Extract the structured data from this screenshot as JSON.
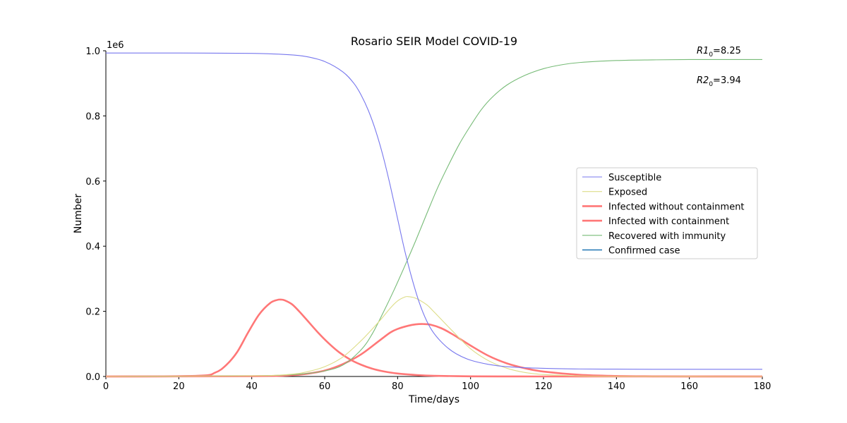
{
  "chart_data": {
    "type": "line",
    "title": "Rosario SEIR Model COVID-19",
    "xlabel": "Time/days",
    "ylabel": "Number",
    "xlim": [
      0,
      180
    ],
    "ylim": [
      0,
      1000000
    ],
    "x_ticks": [
      0,
      20,
      40,
      60,
      80,
      100,
      120,
      140,
      160,
      180
    ],
    "y_ticks": [
      0.0,
      0.2,
      0.4,
      0.6,
      0.8,
      1.0
    ],
    "y_tick_labels": [
      "0.0",
      "0.2",
      "0.4",
      "0.6",
      "0.8",
      "1.0"
    ],
    "y_offset_label": "1e6",
    "grid": false,
    "legend_position": "center-right",
    "annotations": [
      {
        "base": "R1",
        "sub": "0",
        "value": "=8.25"
      },
      {
        "base": "R2",
        "sub": "0",
        "value": "=3.94"
      }
    ],
    "series": [
      {
        "name": "Susceptible",
        "color": "#7777ee",
        "linewidth": "thin",
        "x": [
          0,
          20,
          40,
          50,
          55,
          60,
          65,
          68,
          70,
          72,
          74,
          76,
          78,
          80,
          82,
          84,
          86,
          88,
          90,
          93,
          96,
          100,
          105,
          110,
          120,
          130,
          140,
          150,
          160,
          170,
          180
        ],
        "y": [
          993000,
          993000,
          992000,
          988000,
          982000,
          967000,
          935000,
          900000,
          864000,
          816000,
          754000,
          677000,
          585000,
          484000,
          384000,
          298000,
          225000,
          170000,
          132000,
          95000,
          70000,
          50000,
          37000,
          30000,
          25000,
          23000,
          22500,
          22000,
          22000,
          22000,
          22000
        ]
      },
      {
        "name": "Exposed",
        "color": "#dddd88",
        "linewidth": "thin",
        "x": [
          0,
          40,
          50,
          55,
          60,
          65,
          70,
          75,
          78,
          80,
          82,
          83,
          85,
          88,
          90,
          95,
          100,
          105,
          110,
          115,
          120,
          130,
          140,
          160,
          180
        ],
        "y": [
          0,
          2000,
          6000,
          14000,
          30000,
          60000,
          110000,
          170000,
          210000,
          232000,
          244000,
          245000,
          240000,
          220000,
          198000,
          140000,
          85000,
          48000,
          25000,
          12000,
          6000,
          1500,
          400,
          50,
          0
        ]
      },
      {
        "name": "Infected without containment",
        "color": "#ff7777",
        "linewidth": "thick",
        "x": [
          0,
          25,
          30,
          33,
          36,
          39,
          42,
          45,
          47,
          48,
          49,
          51,
          53,
          55,
          58,
          61,
          64,
          67,
          70,
          73,
          76,
          80,
          85,
          90,
          100,
          110,
          120,
          140,
          180
        ],
        "y": [
          0,
          2000,
          12000,
          35000,
          75000,
          135000,
          190000,
          225000,
          235000,
          236000,
          234000,
          222000,
          200000,
          175000,
          137000,
          103000,
          74000,
          52000,
          36000,
          24000,
          16000,
          9000,
          4500,
          2000,
          500,
          100,
          0,
          0,
          0
        ]
      },
      {
        "name": "Infected with containment",
        "color": "#ff7777",
        "linewidth": "thick",
        "x": [
          0,
          40,
          50,
          55,
          60,
          65,
          70,
          75,
          78,
          80,
          83,
          85,
          87,
          89,
          92,
          95,
          100,
          105,
          110,
          115,
          120,
          130,
          140,
          150,
          160,
          180
        ],
        "y": [
          0,
          1000,
          3000,
          8000,
          18000,
          38000,
          68000,
          110000,
          135000,
          146000,
          156000,
          160000,
          161000,
          159000,
          148000,
          130000,
          95000,
          63000,
          40000,
          25000,
          15000,
          5000,
          1500,
          500,
          100,
          0
        ]
      },
      {
        "name": "Recovered with immunity",
        "color": "#77bb77",
        "linewidth": "thin",
        "x": [
          0,
          40,
          50,
          55,
          60,
          65,
          70,
          73,
          76,
          79,
          82,
          85,
          88,
          91,
          94,
          97,
          100,
          103,
          106,
          110,
          115,
          120,
          125,
          130,
          140,
          150,
          160,
          170,
          180
        ],
        "y": [
          0,
          2000,
          5000,
          9000,
          17000,
          35000,
          82000,
          130000,
          195000,
          265000,
          340000,
          418000,
          500000,
          580000,
          650000,
          715000,
          770000,
          820000,
          858000,
          895000,
          925000,
          945000,
          957000,
          964000,
          970000,
          972000,
          973000,
          973000,
          973000
        ]
      },
      {
        "name": "Confirmed case",
        "color": "#1f77b4",
        "linewidth": "medium",
        "x": [],
        "y": []
      }
    ]
  }
}
